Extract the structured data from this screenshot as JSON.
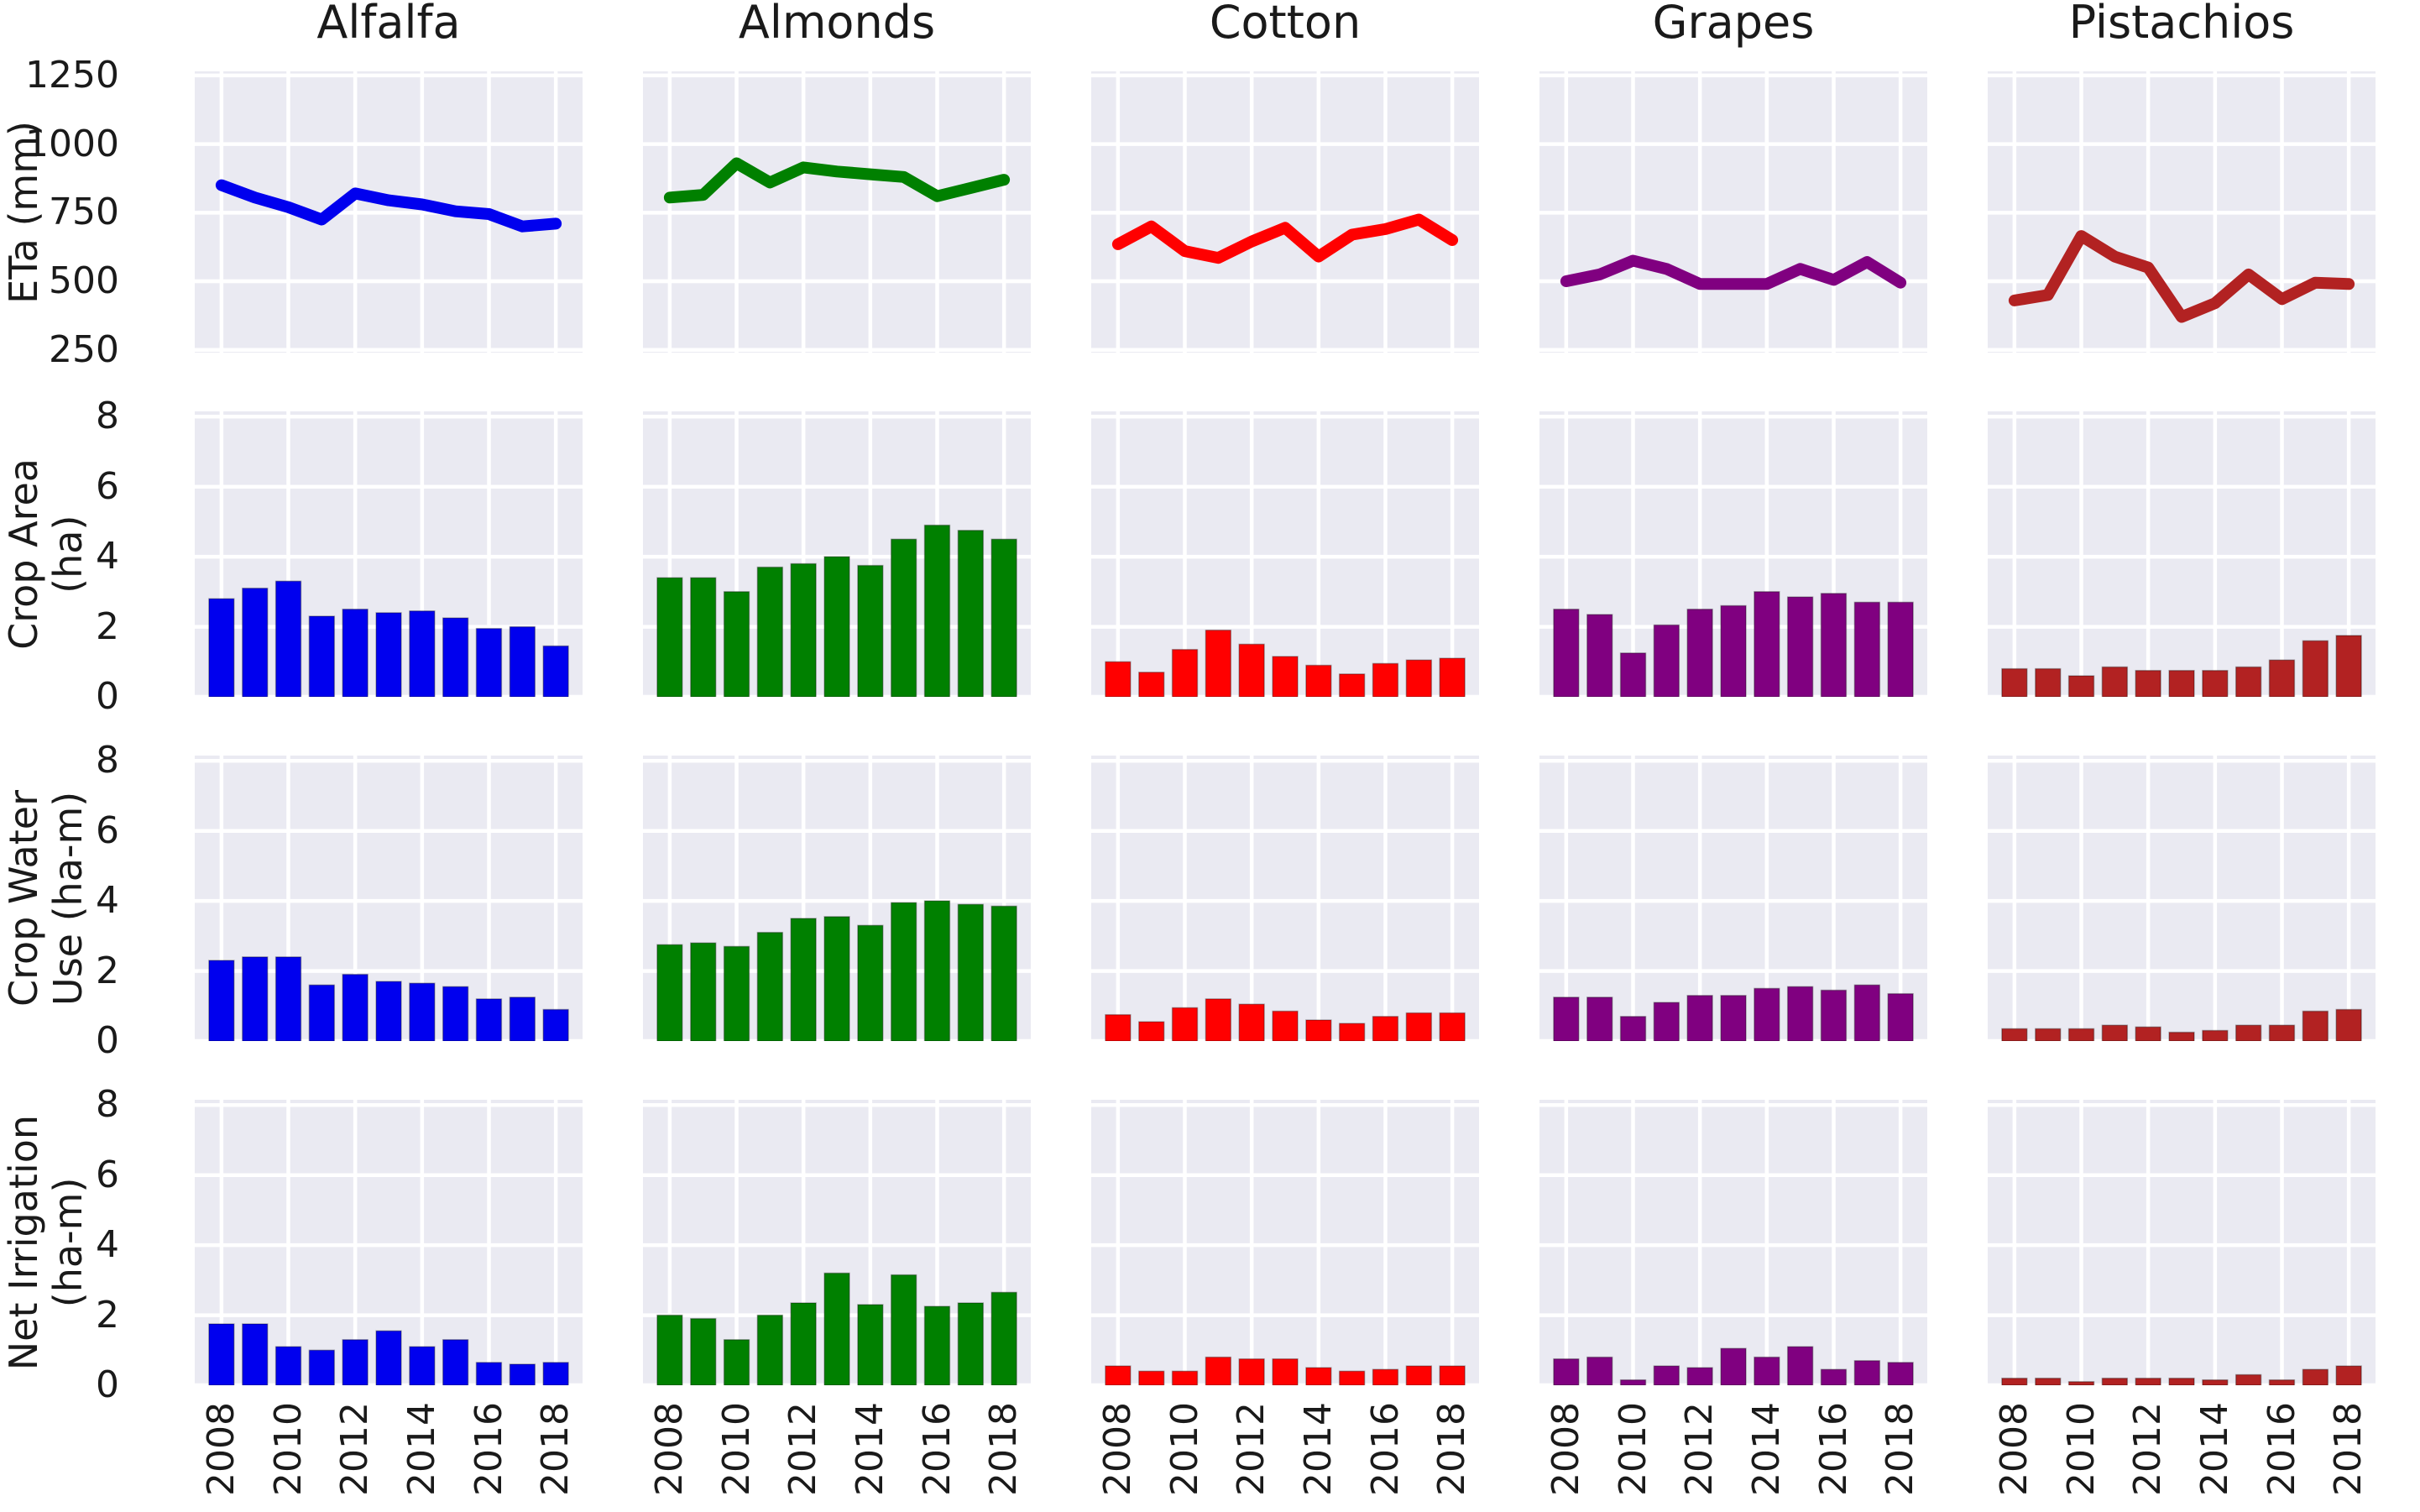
{
  "figure": {
    "background": "#ffffff",
    "plot_background": "#eaeaf2",
    "grid_color": "#ffffff",
    "text_color": "#1a1a1a"
  },
  "chart_data": {
    "type": "grid",
    "description": "4x5 small-multiples: line charts (ETa) and bar charts per crop, 2008-2018",
    "years": [
      2008,
      2009,
      2010,
      2011,
      2012,
      2013,
      2014,
      2015,
      2016,
      2017,
      2018
    ],
    "xticks": [
      2008,
      2010,
      2012,
      2014,
      2016,
      2018
    ],
    "xlim": [
      2007.2,
      2018.8
    ],
    "bar_width": 0.75,
    "columns": [
      {
        "label": "Alfalfa",
        "color": "#0000ee"
      },
      {
        "label": "Almonds",
        "color": "#008000"
      },
      {
        "label": "Cotton",
        "color": "#ff0000"
      },
      {
        "label": "Grapes",
        "color": "#800080"
      },
      {
        "label": "Pistachios",
        "color": "#b22222"
      }
    ],
    "rows": [
      {
        "key": "eta",
        "label_lines": [
          "ETa (mm)"
        ],
        "type": "line",
        "ylim": [
          240,
          1265
        ],
        "yticks": [
          250,
          500,
          750,
          1000,
          1250
        ]
      },
      {
        "key": "crop_area",
        "label_lines": [
          "Crop Area",
          "(ha)"
        ],
        "type": "bar",
        "ylim": [
          0,
          8.15
        ],
        "yticks": [
          0,
          2,
          4,
          6,
          8
        ]
      },
      {
        "key": "crop_water_use",
        "label_lines": [
          "Crop Water",
          "Use (ha-m)"
        ],
        "type": "bar",
        "ylim": [
          0,
          8.15
        ],
        "yticks": [
          0,
          2,
          4,
          6,
          8
        ]
      },
      {
        "key": "net_irrigation",
        "label_lines": [
          "Net Irrigation",
          "(ha-m)"
        ],
        "type": "bar",
        "ylim": [
          0,
          8.15
        ],
        "yticks": [
          0,
          2,
          4,
          6,
          8
        ]
      }
    ],
    "values": {
      "Alfalfa": {
        "eta": [
          850,
          805,
          770,
          725,
          820,
          795,
          780,
          755,
          745,
          700,
          710
        ],
        "crop_area": [
          2.8,
          3.1,
          3.3,
          2.3,
          2.5,
          2.4,
          2.45,
          2.25,
          1.95,
          2.0,
          1.45
        ],
        "crop_water_use": [
          2.3,
          2.4,
          2.4,
          1.6,
          1.9,
          1.7,
          1.65,
          1.55,
          1.2,
          1.25,
          0.9
        ],
        "net_irrigation": [
          1.75,
          1.75,
          1.1,
          1.0,
          1.3,
          1.55,
          1.1,
          1.3,
          0.65,
          0.6,
          0.65
        ]
      },
      "Almonds": {
        "eta": [
          805,
          815,
          930,
          860,
          915,
          900,
          890,
          880,
          810,
          840,
          870
        ],
        "crop_area": [
          3.4,
          3.4,
          3.0,
          3.7,
          3.8,
          4.0,
          3.75,
          4.5,
          4.9,
          4.75,
          4.5
        ],
        "crop_water_use": [
          2.75,
          2.8,
          2.7,
          3.1,
          3.5,
          3.55,
          3.3,
          3.95,
          4.0,
          3.9,
          3.85
        ],
        "net_irrigation": [
          2.0,
          1.9,
          1.3,
          2.0,
          2.35,
          3.2,
          2.3,
          3.15,
          2.25,
          2.35,
          2.65
        ]
      },
      "Cotton": {
        "eta": [
          635,
          700,
          610,
          585,
          645,
          695,
          590,
          670,
          690,
          725,
          650
        ],
        "crop_area": [
          1.0,
          0.7,
          1.35,
          1.9,
          1.5,
          1.15,
          0.9,
          0.65,
          0.95,
          1.05,
          1.1
        ],
        "crop_water_use": [
          0.75,
          0.55,
          0.95,
          1.2,
          1.05,
          0.85,
          0.6,
          0.5,
          0.7,
          0.8,
          0.8
        ],
        "net_irrigation": [
          0.55,
          0.4,
          0.4,
          0.8,
          0.75,
          0.75,
          0.5,
          0.4,
          0.45,
          0.55,
          0.55
        ]
      },
      "Grapes": {
        "eta": [
          500,
          525,
          575,
          545,
          490,
          490,
          490,
          545,
          505,
          570,
          495
        ],
        "crop_area": [
          2.5,
          2.35,
          1.25,
          2.05,
          2.5,
          2.6,
          3.0,
          2.85,
          2.95,
          2.7,
          2.7
        ],
        "crop_water_use": [
          1.25,
          1.25,
          0.7,
          1.1,
          1.3,
          1.3,
          1.5,
          1.55,
          1.45,
          1.6,
          1.35
        ],
        "net_irrigation": [
          0.75,
          0.8,
          0.15,
          0.55,
          0.5,
          1.05,
          0.8,
          1.1,
          0.45,
          0.7,
          0.65
        ]
      },
      "Pistachios": {
        "eta": [
          430,
          450,
          665,
          590,
          550,
          370,
          420,
          525,
          435,
          495,
          490
        ],
        "crop_area": [
          0.8,
          0.8,
          0.6,
          0.85,
          0.75,
          0.75,
          0.75,
          0.85,
          1.05,
          1.6,
          1.75
        ],
        "crop_water_use": [
          0.35,
          0.35,
          0.35,
          0.45,
          0.4,
          0.25,
          0.3,
          0.45,
          0.45,
          0.85,
          0.9
        ],
        "net_irrigation": [
          0.2,
          0.2,
          0.1,
          0.2,
          0.2,
          0.2,
          0.15,
          0.3,
          0.15,
          0.45,
          0.55
        ]
      }
    }
  }
}
